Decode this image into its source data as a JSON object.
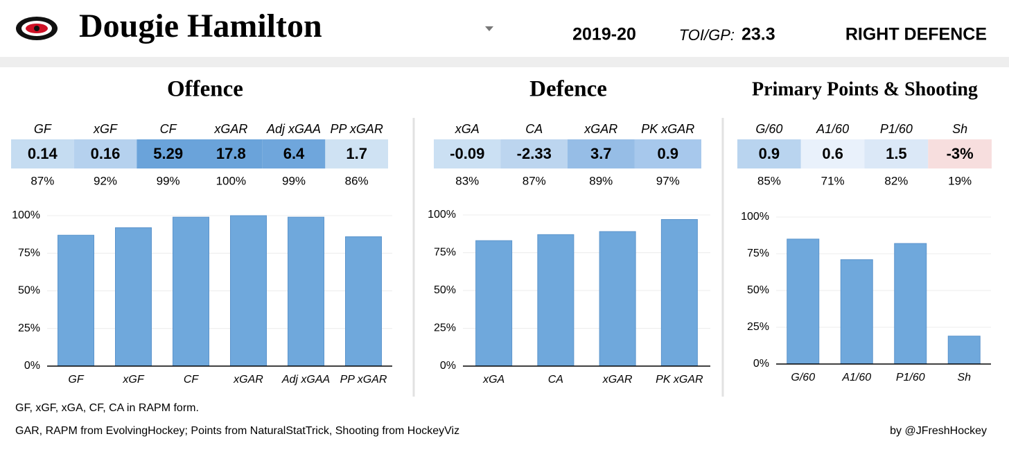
{
  "header": {
    "name": "Dougie Hamilton",
    "season": "2019-20",
    "toi_label": "TOI/GP:",
    "toi_value": 23.3,
    "position": "RIGHT DEFENCE"
  },
  "chart_data": [
    {
      "type": "bar",
      "title": "Offence",
      "categories": [
        "GF",
        "xGF",
        "CF",
        "xGAR",
        "Adj xGAA",
        "PP xGAR"
      ],
      "stats": [
        0.14,
        0.16,
        5.29,
        17.8,
        6.4,
        1.7
      ],
      "stat_colors": [
        "#c5dcf1",
        "#b5d1ee",
        "#6aa3da",
        "#6aa3da",
        "#6fa6dc",
        "#cfe2f3"
      ],
      "values": [
        87,
        92,
        99,
        100,
        99,
        86
      ],
      "value_labels": [
        "87%",
        "92%",
        "99%",
        "100%",
        "99%",
        "86%"
      ],
      "color": "#6fa8dc",
      "ylim": [
        0,
        100
      ],
      "yticks": [
        {
          "value": 0,
          "label": "0%"
        },
        {
          "value": 25,
          "label": "25%"
        },
        {
          "value": 50,
          "label": "50%"
        },
        {
          "value": 75,
          "label": "75%"
        },
        {
          "value": 100,
          "label": "100%"
        }
      ],
      "grid": true
    },
    {
      "type": "bar",
      "title": "Defence",
      "categories": [
        "xGA",
        "CA",
        "xGAR",
        "PK xGAR"
      ],
      "stats": [
        -0.09,
        -2.33,
        3.7,
        0.9
      ],
      "stat_colors": [
        "#cbe0f3",
        "#bcd5ef",
        "#96bde6",
        "#a7c8ec"
      ],
      "values": [
        83,
        87,
        89,
        97
      ],
      "value_labels": [
        "83%",
        "87%",
        "89%",
        "97%"
      ],
      "color": "#6fa8dc",
      "ylim": [
        0,
        100
      ],
      "yticks": [
        {
          "value": 0,
          "label": "0%"
        },
        {
          "value": 25,
          "label": "25%"
        },
        {
          "value": 50,
          "label": "50%"
        },
        {
          "value": 75,
          "label": "75%"
        },
        {
          "value": 100,
          "label": "100%"
        }
      ],
      "grid": true
    },
    {
      "type": "bar",
      "title": "Primary Points & Shooting",
      "categories": [
        "G/60",
        "A1/60",
        "P1/60",
        "Sh"
      ],
      "stats": [
        0.9,
        0.6,
        1.5,
        {
          "value": -3,
          "label": "-3%"
        }
      ],
      "stat_colors": [
        "#b9d4ef",
        "#e9f1fb",
        "#dbe8f7",
        "#f7dede"
      ],
      "values": [
        85,
        71,
        82,
        19
      ],
      "value_labels": [
        "85%",
        "71%",
        "82%",
        "19%"
      ],
      "color": "#6fa8dc",
      "ylim": [
        0,
        100
      ],
      "yticks": [
        {
          "value": 0,
          "label": "0%"
        },
        {
          "value": 25,
          "label": "25%"
        },
        {
          "value": 50,
          "label": "50%"
        },
        {
          "value": 75,
          "label": "75%"
        },
        {
          "value": 100,
          "label": "100%"
        }
      ],
      "grid": true
    }
  ],
  "footer": {
    "notes": [
      "GF, xGF, xGA, CF, CA in RAPM form.",
      "GAR, RAPM from EvolvingHockey; Points from NaturalStatTrick, Shooting from HockeyViz"
    ],
    "credit": "by @JFreshHockey"
  }
}
